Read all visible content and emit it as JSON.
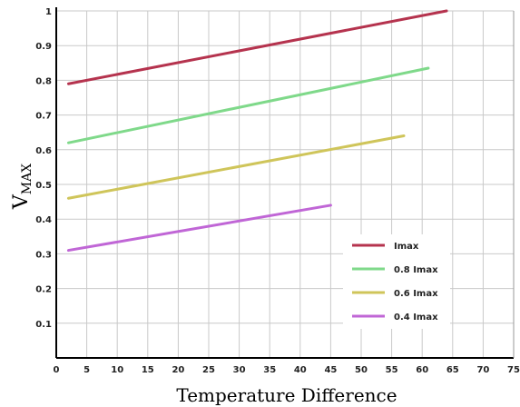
{
  "chart_data": {
    "type": "line",
    "title": "",
    "xlabel": "Temperature Difference",
    "ylabel": "V",
    "ylabel_subscript": "MAX",
    "xlim": [
      0,
      75
    ],
    "ylim": [
      0,
      1
    ],
    "x_ticks": [
      "0",
      "5",
      "10",
      "15",
      "20",
      "25",
      "30",
      "35",
      "40",
      "45",
      "50",
      "55",
      "60",
      "65",
      "70",
      "75"
    ],
    "y_ticks": [
      "0.1",
      "0.2",
      "0.3",
      "0.4",
      "0.5",
      "0.6",
      "0.7",
      "0.8",
      "0.9",
      "1"
    ],
    "grid": true,
    "legend_position": "lower-right",
    "series": [
      {
        "name": "Imax",
        "color": "#b5334e",
        "x": [
          2,
          64
        ],
        "y": [
          0.79,
          1.0
        ]
      },
      {
        "name": "0.8 Imax",
        "color": "#7fd98a",
        "x": [
          2,
          61
        ],
        "y": [
          0.62,
          0.835
        ]
      },
      {
        "name": "0.6 Imax",
        "color": "#cfc55a",
        "x": [
          2,
          57
        ],
        "y": [
          0.46,
          0.64
        ]
      },
      {
        "name": "0.4 Imax",
        "color": "#c066d6",
        "x": [
          2,
          45
        ],
        "y": [
          0.31,
          0.44
        ]
      }
    ]
  }
}
